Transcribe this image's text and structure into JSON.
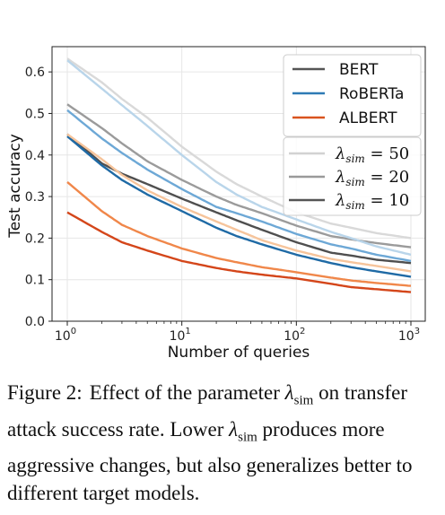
{
  "chart_data": {
    "type": "line",
    "xscale": "log",
    "xlim": [
      1,
      1000
    ],
    "ylim": [
      0,
      0.65
    ],
    "xlabel": "Number of queries",
    "ylabel": "Test accuracy",
    "grid": true,
    "xticks": [
      {
        "value": 1,
        "base": "10",
        "exp": "0"
      },
      {
        "value": 10,
        "base": "10",
        "exp": "1"
      },
      {
        "value": 100,
        "base": "10",
        "exp": "2"
      },
      {
        "value": 1000,
        "base": "10",
        "exp": "3"
      }
    ],
    "yticks": [
      0.0,
      0.1,
      0.2,
      0.3,
      0.4,
      0.5,
      0.6
    ],
    "ytick_labels": [
      "0.0",
      "0.1",
      "0.2",
      "0.3",
      "0.4",
      "0.5",
      "0.6"
    ],
    "legend_models": [
      {
        "name": "BERT",
        "color": "#555555"
      },
      {
        "name": "RoBERTa",
        "color": "#2e7ab5"
      },
      {
        "name": "ALBERT",
        "color": "#d9541e"
      }
    ],
    "legend_lambdas": [
      {
        "symbol": "λ",
        "sub": "sim",
        "rhs": "= 50",
        "color": "#d2d2d2"
      },
      {
        "symbol": "λ",
        "sub": "sim",
        "rhs": "= 20",
        "color": "#9a9a9a"
      },
      {
        "symbol": "λ",
        "sub": "sim",
        "rhs": "= 10",
        "color": "#555555"
      }
    ],
    "x": [
      1,
      2,
      3,
      5,
      10,
      20,
      30,
      50,
      100,
      200,
      300,
      500,
      1000
    ],
    "series": [
      {
        "name": "BERT, λsim = 50",
        "color": "#d9d9d9",
        "values": [
          0.632,
          0.575,
          0.535,
          0.49,
          0.42,
          0.36,
          0.33,
          0.3,
          0.262,
          0.235,
          0.225,
          0.212,
          0.2
        ]
      },
      {
        "name": "BERT, λsim = 20",
        "color": "#9b9b9b",
        "values": [
          0.522,
          0.465,
          0.428,
          0.385,
          0.34,
          0.3,
          0.28,
          0.26,
          0.23,
          0.205,
          0.197,
          0.188,
          0.178
        ]
      },
      {
        "name": "BERT, λsim = 10",
        "color": "#4f4f4f",
        "values": [
          0.45,
          0.38,
          0.355,
          0.33,
          0.295,
          0.262,
          0.243,
          0.22,
          0.19,
          0.165,
          0.158,
          0.148,
          0.14
        ]
      },
      {
        "name": "RoBERTa, λsim = 50",
        "color": "#b9d5ea",
        "values": [
          0.628,
          0.56,
          0.52,
          0.47,
          0.4,
          0.335,
          0.305,
          0.275,
          0.245,
          0.215,
          0.2,
          0.18,
          0.16
        ]
      },
      {
        "name": "RoBERTa, λsim = 20",
        "color": "#6da8d6",
        "values": [
          0.508,
          0.44,
          0.405,
          0.365,
          0.318,
          0.275,
          0.26,
          0.24,
          0.21,
          0.185,
          0.175,
          0.16,
          0.145
        ]
      },
      {
        "name": "RoBERTa, λsim = 10",
        "color": "#1f6aa5",
        "values": [
          0.445,
          0.375,
          0.34,
          0.305,
          0.265,
          0.225,
          0.205,
          0.185,
          0.16,
          0.14,
          0.13,
          0.12,
          0.107
        ]
      },
      {
        "name": "ALBERT, λsim = 50",
        "color": "#f6c49b",
        "values": [
          0.45,
          0.39,
          0.352,
          0.315,
          0.275,
          0.24,
          0.22,
          0.195,
          0.17,
          0.15,
          0.142,
          0.133,
          0.12
        ]
      },
      {
        "name": "ALBERT, λsim = 20",
        "color": "#f0874a",
        "values": [
          0.335,
          0.265,
          0.232,
          0.205,
          0.175,
          0.152,
          0.142,
          0.13,
          0.118,
          0.105,
          0.098,
          0.092,
          0.085
        ]
      },
      {
        "name": "ALBERT, λsim = 10",
        "color": "#d4461a",
        "values": [
          0.262,
          0.215,
          0.19,
          0.17,
          0.145,
          0.128,
          0.12,
          0.112,
          0.103,
          0.09,
          0.082,
          0.077,
          0.07
        ]
      }
    ]
  },
  "caption": {
    "label": "Figure 2:",
    "part1": "Effect of the parameter ",
    "symbol": "λ",
    "sub": "sim",
    "part2": " on transfer attack success rate. Lower ",
    "part3": " produces more aggressive changes, but also generalizes better to different target models."
  }
}
